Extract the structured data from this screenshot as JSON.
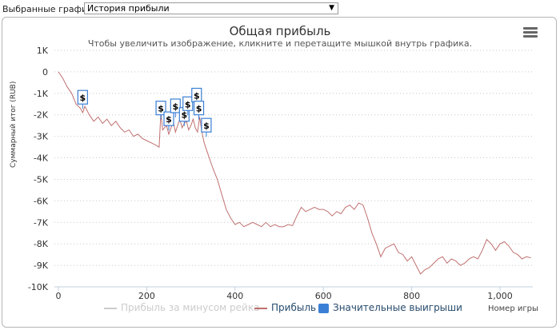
{
  "selector": {
    "label": "Выбранные графики:",
    "value": "История прибыли"
  },
  "chart_data": {
    "type": "line",
    "title": "Общая прибыль",
    "subtitle": "Чтобы увеличить изображение, кликните и перетащите мышкой внутрь графика.",
    "ylabel": "Суммарный итог (RUB)",
    "xlabel": "Номер игры",
    "ylim": [
      -10000,
      1000
    ],
    "xlim": [
      0,
      1080
    ],
    "yticks": [
      "1K",
      "0",
      "-1K",
      "-2K",
      "-3K",
      "-4K",
      "-5K",
      "-6K",
      "-7K",
      "-8K",
      "-9K",
      "-10K"
    ],
    "xticks": [
      "0",
      "200",
      "400",
      "600",
      "800",
      "1,000"
    ],
    "grid": true,
    "legend_position": "bottom",
    "series": [
      {
        "name": "Прибыль за минусом рейка",
        "color": "#cccccc",
        "hidden": true,
        "x": [],
        "y": []
      },
      {
        "name": "Прибыль",
        "color": "#c07070",
        "x": [
          0,
          10,
          20,
          30,
          40,
          50,
          55,
          60,
          70,
          80,
          90,
          100,
          110,
          120,
          130,
          140,
          150,
          160,
          170,
          180,
          190,
          200,
          210,
          220,
          228,
          232,
          236,
          240,
          245,
          250,
          255,
          260,
          265,
          270,
          275,
          280,
          285,
          290,
          295,
          300,
          305,
          310,
          315,
          320,
          325,
          330,
          335,
          340,
          345,
          350,
          360,
          370,
          380,
          390,
          400,
          410,
          420,
          430,
          440,
          450,
          460,
          470,
          480,
          490,
          500,
          510,
          520,
          530,
          540,
          550,
          560,
          570,
          580,
          590,
          600,
          610,
          620,
          630,
          640,
          650,
          660,
          670,
          680,
          690,
          700,
          710,
          720,
          730,
          740,
          750,
          760,
          770,
          780,
          790,
          800,
          810,
          820,
          830,
          840,
          850,
          860,
          870,
          880,
          890,
          900,
          910,
          920,
          930,
          940,
          950,
          960,
          970,
          980,
          990,
          1000,
          1010,
          1020,
          1030,
          1040,
          1050,
          1060,
          1070
        ],
        "y": [
          0,
          -300,
          -700,
          -1000,
          -1500,
          -1700,
          -1900,
          -1600,
          -2000,
          -2300,
          -2100,
          -2400,
          -2200,
          -2500,
          -2300,
          -2600,
          -2800,
          -2700,
          -3000,
          -2900,
          -3100,
          -3200,
          -3300,
          -3400,
          -3500,
          -1900,
          -2700,
          -2600,
          -2500,
          -2900,
          -2600,
          -2300,
          -2800,
          -2500,
          -2200,
          -2600,
          -2400,
          -2300,
          -2700,
          -2500,
          -2200,
          -2600,
          -2800,
          -2100,
          -2800,
          -3300,
          -3600,
          -3900,
          -4200,
          -4500,
          -5000,
          -5700,
          -6400,
          -6800,
          -7100,
          -7000,
          -7200,
          -7100,
          -7000,
          -7100,
          -7200,
          -7000,
          -7200,
          -7100,
          -7200,
          -7200,
          -7100,
          -7150,
          -6700,
          -6300,
          -6500,
          -6400,
          -6300,
          -6400,
          -6400,
          -6500,
          -6700,
          -6500,
          -6600,
          -6300,
          -6200,
          -6400,
          -6100,
          -6200,
          -6800,
          -7500,
          -8000,
          -8600,
          -8200,
          -8100,
          -8000,
          -8400,
          -8500,
          -8800,
          -8600,
          -9000,
          -9400,
          -9200,
          -9100,
          -8900,
          -8700,
          -8600,
          -8900,
          -8700,
          -8800,
          -9000,
          -8900,
          -8700,
          -8600,
          -8700,
          -8300,
          -7800,
          -8000,
          -8300,
          -8000,
          -7900,
          -8100,
          -8400,
          -8500,
          -8700,
          -8600,
          -8650
        ]
      },
      {
        "name": "Значительные выигрыши",
        "color": "#3a7fd5",
        "type": "flags",
        "flag_text": "$",
        "points": [
          {
            "x": 55,
            "y": -1200
          },
          {
            "x": 232,
            "y": -1700
          },
          {
            "x": 250,
            "y": -2200
          },
          {
            "x": 265,
            "y": -1600
          },
          {
            "x": 285,
            "y": -2000
          },
          {
            "x": 293,
            "y": -1500
          },
          {
            "x": 313,
            "y": -1100
          },
          {
            "x": 318,
            "y": -1700
          },
          {
            "x": 335,
            "y": -2500
          }
        ]
      }
    ]
  },
  "icons": {
    "menu": "hamburger-menu-icon",
    "select_arrow": "triangle-down-icon"
  }
}
